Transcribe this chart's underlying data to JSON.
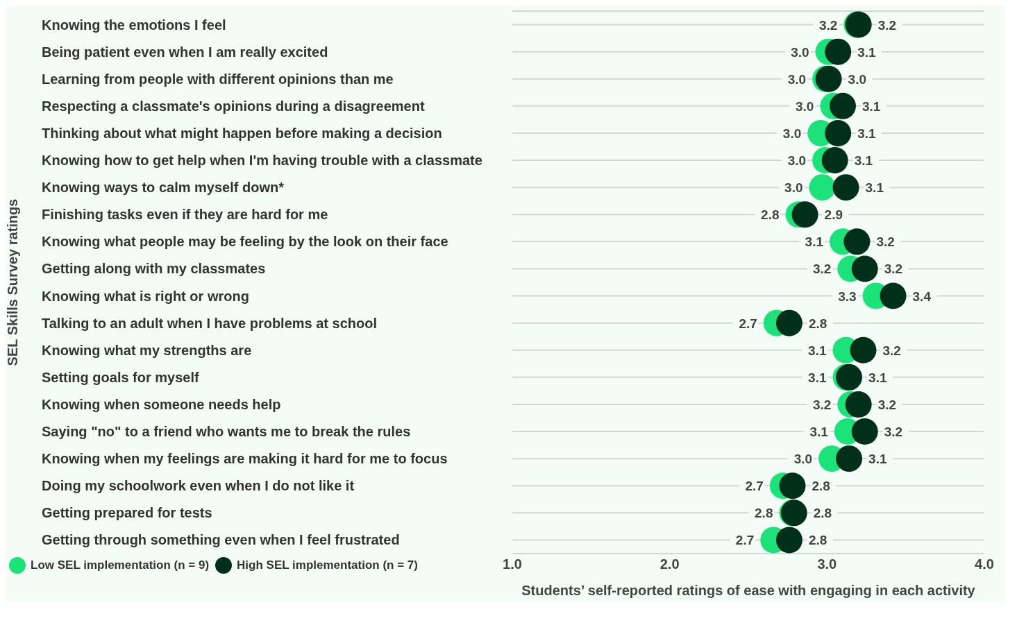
{
  "chart_data": {
    "type": "scatter",
    "orientation": "horizontal",
    "ylabel": "SEL Skills Survey ratings",
    "xlabel": "Students’ self-reported ratings of ease with engaging in each activity",
    "categories": [
      "Knowing the emotions I feel",
      "Being patient even when I am really excited",
      "Learning from people with different opinions than me",
      "Respecting a classmate's opinions during a disagreement",
      "Thinking about what might happen before making a decision",
      "Knowing how to get help when I'm having trouble with a classmate",
      "Knowing ways to calm myself down*",
      "Finishing tasks even if they are hard for me",
      "Knowing what people may be feeling by the look on their face",
      "Getting along with my classmates",
      "Knowing what is right or wrong",
      "Talking to an adult when I have problems at school",
      "Knowing what my strengths are",
      "Setting goals for myself",
      "Knowing when someone needs help",
      "Saying \"no\" to a friend who wants me to break the rules",
      "Knowing when my feelings are making it hard for me to focus",
      "Doing my schoolwork even when I do not like it",
      "Getting prepared for tests",
      "Getting through something even when I feel frustrated"
    ],
    "series": [
      {
        "name": "Low SEL implementation (n = 9)",
        "color": "#1de27a",
        "values": [
          3.19,
          3.01,
          2.99,
          3.04,
          2.96,
          2.99,
          2.97,
          2.82,
          3.1,
          3.15,
          3.31,
          2.68,
          3.12,
          3.12,
          3.15,
          3.13,
          3.03,
          2.72,
          2.78,
          2.66
        ],
        "value_labels": [
          "3.2",
          "3.0",
          "3.0",
          "3.0",
          "3.0",
          "3.0",
          "3.0",
          "2.8",
          "3.1",
          "3.2",
          "3.3",
          "2.7",
          "3.1",
          "3.1",
          "3.2",
          "3.1",
          "3.0",
          "2.7",
          "2.8",
          "2.7"
        ]
      },
      {
        "name": "High SEL implementation (n = 7)",
        "color": "#00301a",
        "values": [
          3.2,
          3.07,
          3.01,
          3.1,
          3.07,
          3.05,
          3.12,
          2.86,
          3.19,
          3.24,
          3.42,
          2.76,
          3.23,
          3.14,
          3.2,
          3.24,
          3.14,
          2.78,
          2.79,
          2.76
        ],
        "value_labels": [
          "3.2",
          "3.1",
          "3.0",
          "3.1",
          "3.1",
          "3.1",
          "3.1",
          "2.9",
          "3.2",
          "3.2",
          "3.4",
          "2.8",
          "3.2",
          "3.1",
          "3.2",
          "3.2",
          "3.1",
          "2.8",
          "2.8",
          "2.8"
        ]
      }
    ],
    "xlim": [
      1,
      4
    ],
    "xticks": [
      {
        "value": 1,
        "label": "1.0"
      },
      {
        "value": 2,
        "label": "2.0"
      },
      {
        "value": 3,
        "label": "3.0"
      },
      {
        "value": 4,
        "label": "4.0"
      }
    ],
    "grid": "y",
    "legend": "bottom left",
    "marker": "circle"
  }
}
